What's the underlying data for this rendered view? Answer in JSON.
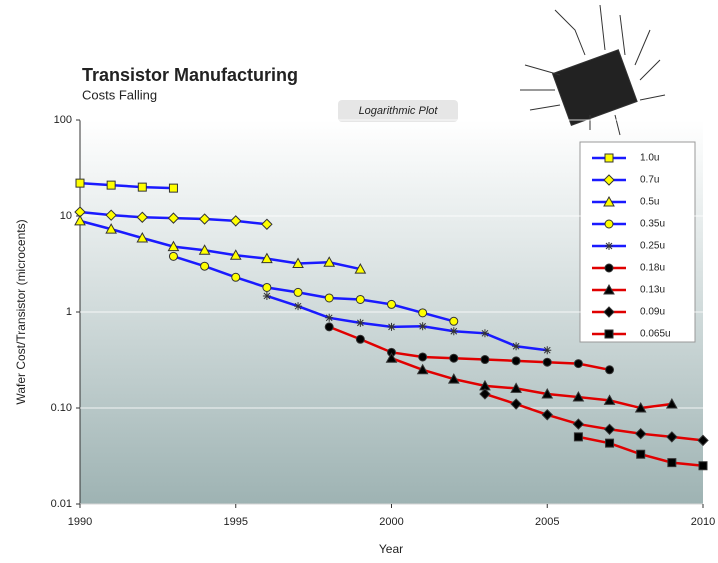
{
  "chart_data": {
    "type": "line",
    "title": "Transistor Manufacturing",
    "subtitle": "Costs Falling",
    "annotation": "Logarithmic Plot",
    "x_label": "Year",
    "y_label": "Wafer Cost/Transistor (microcents)",
    "log_y": true,
    "grid": true,
    "legend": "upper right",
    "xlim": [
      1990,
      2010
    ],
    "xticks": [
      1990,
      1995,
      2000,
      2005,
      2010
    ],
    "ylim": [
      0.01,
      100
    ],
    "yticks": [
      {
        "value": 0.01,
        "label": "0.01"
      },
      {
        "value": 0.1,
        "label": "0.10"
      },
      1,
      10,
      100
    ],
    "series": [
      {
        "name": "1.0u",
        "color": "#1a1aff",
        "marker": "square",
        "marker_color": "#ffff00",
        "x": [
          1990,
          1991,
          1992,
          1993
        ],
        "values": [
          22,
          21,
          20,
          19.5
        ]
      },
      {
        "name": "0.7u",
        "color": "#1a1aff",
        "marker": "diamond",
        "marker_color": "#ffff00",
        "x": [
          1990,
          1991,
          1992,
          1993,
          1994,
          1995,
          1996
        ],
        "values": [
          11,
          10.2,
          9.7,
          9.5,
          9.3,
          8.9,
          8.2
        ]
      },
      {
        "name": "0.5u",
        "color": "#1a1aff",
        "marker": "triangle",
        "marker_color": "#ffff00",
        "x": [
          1990,
          1991,
          1992,
          1993,
          1994,
          1995,
          1996,
          1997,
          1998,
          1999
        ],
        "values": [
          8.9,
          7.3,
          5.9,
          4.8,
          4.4,
          3.9,
          3.6,
          3.2,
          3.3,
          2.8
        ]
      },
      {
        "name": "0.35u",
        "color": "#1a1aff",
        "marker": "circle",
        "marker_color": "#ffff00",
        "x": [
          1993,
          1994,
          1995,
          1996,
          1997,
          1998,
          1999,
          2000,
          2001,
          2002
        ],
        "values": [
          3.8,
          3.0,
          2.3,
          1.8,
          1.6,
          1.4,
          1.35,
          1.2,
          0.98,
          0.8
        ]
      },
      {
        "name": "0.25u",
        "color": "#1a1aff",
        "marker": "star",
        "marker_color": "#333333",
        "x": [
          1996,
          1997,
          1998,
          1999,
          2000,
          2001,
          2002,
          2003,
          2004,
          2005
        ],
        "values": [
          1.47,
          1.15,
          0.87,
          0.77,
          0.7,
          0.71,
          0.63,
          0.6,
          0.44,
          0.4
        ]
      },
      {
        "name": "0.18u",
        "color": "#e00000",
        "marker": "circle",
        "marker_color": "#000000",
        "x": [
          1998,
          1999,
          2000,
          2001,
          2002,
          2003,
          2004,
          2005,
          2006,
          2007
        ],
        "values": [
          0.7,
          0.52,
          0.38,
          0.34,
          0.33,
          0.32,
          0.31,
          0.3,
          0.29,
          0.25
        ]
      },
      {
        "name": "0.13u",
        "color": "#e00000",
        "marker": "triangle",
        "marker_color": "#000000",
        "x": [
          2000,
          2001,
          2002,
          2003,
          2004,
          2005,
          2006,
          2007,
          2008,
          2009
        ],
        "values": [
          0.33,
          0.25,
          0.2,
          0.17,
          0.16,
          0.14,
          0.13,
          0.12,
          0.1,
          0.11
        ]
      },
      {
        "name": "0.09u",
        "color": "#e00000",
        "marker": "diamond",
        "marker_color": "#000000",
        "x": [
          2003,
          2004,
          2005,
          2006,
          2007,
          2008,
          2009,
          2010
        ],
        "values": [
          0.14,
          0.11,
          0.085,
          0.068,
          0.06,
          0.054,
          0.05,
          0.046
        ]
      },
      {
        "name": "0.065u",
        "color": "#e00000",
        "marker": "square",
        "marker_color": "#000000",
        "x": [
          2006,
          2007,
          2008,
          2009,
          2010
        ],
        "values": [
          0.05,
          0.043,
          0.033,
          0.027,
          0.025
        ]
      }
    ]
  }
}
